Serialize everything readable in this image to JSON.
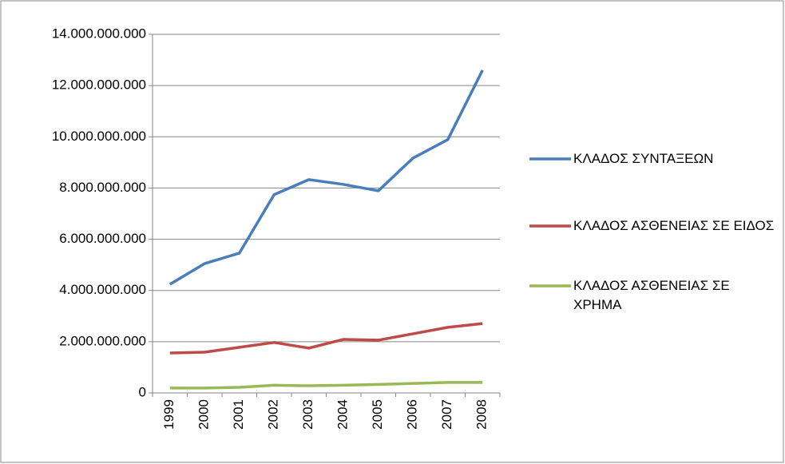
{
  "chart_data": {
    "type": "line",
    "categories": [
      "1999",
      "2000",
      "2001",
      "2002",
      "2003",
      "2004",
      "2005",
      "2006",
      "2007",
      "2008"
    ],
    "series": [
      {
        "name": "ΚΛΑΔΟΣ ΣΥΝΤΑΞΕΩΝ",
        "color": "#4a7ebb",
        "values": [
          4240000000,
          5050000000,
          5460000000,
          7740000000,
          8330000000,
          8140000000,
          7890000000,
          9170000000,
          9890000000,
          12600000000
        ]
      },
      {
        "name": "ΚΛΑΔΟΣ ΑΣΘΕΝΕΙΑΣ ΣΕ ΕΙΔΟΣ",
        "color": "#be4b48",
        "values": [
          1560000000,
          1590000000,
          1780000000,
          1970000000,
          1750000000,
          2090000000,
          2060000000,
          2310000000,
          2560000000,
          2710000000
        ]
      },
      {
        "name": "ΚΛΑΔΟΣ ΑΣΘΕΝΕΙΑΣ ΣΕ ΧΡΗΜΑ",
        "color": "#98b954",
        "values": [
          190000000,
          190000000,
          220000000,
          300000000,
          280000000,
          300000000,
          330000000,
          370000000,
          410000000,
          410000000
        ]
      }
    ],
    "ylim": [
      0,
      14000000000
    ],
    "yticks": [
      0,
      {
        "value": 2000000000,
        "label": "2.000.000.000"
      },
      {
        "value": 4000000000,
        "label": "4.000.000.000"
      },
      {
        "value": 6000000000,
        "label": "6.000.000.000"
      },
      {
        "value": 8000000000,
        "label": "8.000.000.000"
      },
      {
        "value": 10000000000,
        "label": "10.000.000.000"
      },
      {
        "value": 12000000000,
        "label": "12.000.000.000"
      },
      {
        "value": 14000000000,
        "label": "14.000.000.000"
      }
    ],
    "grid": true,
    "legend": "right"
  }
}
